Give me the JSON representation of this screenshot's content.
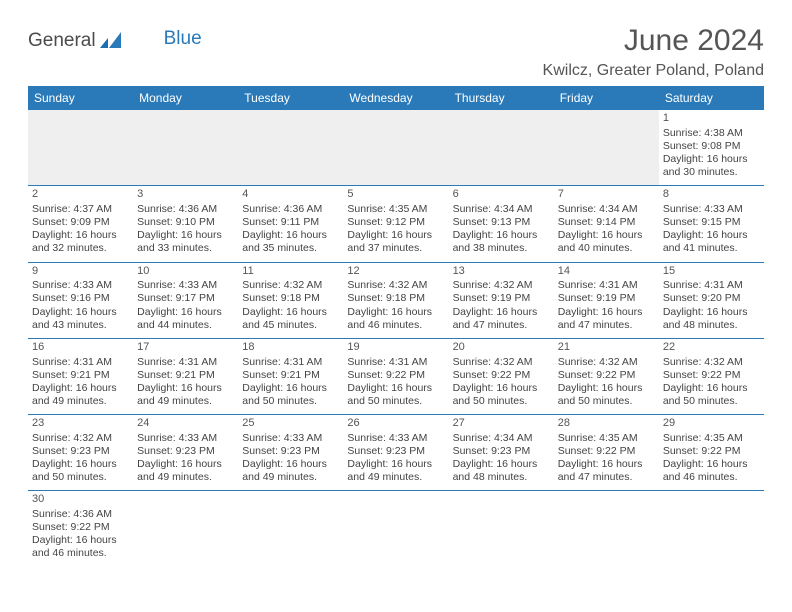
{
  "brand": {
    "word1": "General",
    "word2": "Blue",
    "color1": "#4b4b4b",
    "color2": "#2a7ab9"
  },
  "title": "June 2024",
  "location": "Kwilcz, Greater Poland, Poland",
  "header_bg": "#2a7ab9",
  "days": [
    "Sunday",
    "Monday",
    "Tuesday",
    "Wednesday",
    "Thursday",
    "Friday",
    "Saturday"
  ],
  "weeks": [
    [
      null,
      null,
      null,
      null,
      null,
      null,
      {
        "n": "1",
        "sr": "4:38 AM",
        "ss": "9:08 PM",
        "dl": "16 hours and 30 minutes."
      }
    ],
    [
      {
        "n": "2",
        "sr": "4:37 AM",
        "ss": "9:09 PM",
        "dl": "16 hours and 32 minutes."
      },
      {
        "n": "3",
        "sr": "4:36 AM",
        "ss": "9:10 PM",
        "dl": "16 hours and 33 minutes."
      },
      {
        "n": "4",
        "sr": "4:36 AM",
        "ss": "9:11 PM",
        "dl": "16 hours and 35 minutes."
      },
      {
        "n": "5",
        "sr": "4:35 AM",
        "ss": "9:12 PM",
        "dl": "16 hours and 37 minutes."
      },
      {
        "n": "6",
        "sr": "4:34 AM",
        "ss": "9:13 PM",
        "dl": "16 hours and 38 minutes."
      },
      {
        "n": "7",
        "sr": "4:34 AM",
        "ss": "9:14 PM",
        "dl": "16 hours and 40 minutes."
      },
      {
        "n": "8",
        "sr": "4:33 AM",
        "ss": "9:15 PM",
        "dl": "16 hours and 41 minutes."
      }
    ],
    [
      {
        "n": "9",
        "sr": "4:33 AM",
        "ss": "9:16 PM",
        "dl": "16 hours and 43 minutes."
      },
      {
        "n": "10",
        "sr": "4:33 AM",
        "ss": "9:17 PM",
        "dl": "16 hours and 44 minutes."
      },
      {
        "n": "11",
        "sr": "4:32 AM",
        "ss": "9:18 PM",
        "dl": "16 hours and 45 minutes."
      },
      {
        "n": "12",
        "sr": "4:32 AM",
        "ss": "9:18 PM",
        "dl": "16 hours and 46 minutes."
      },
      {
        "n": "13",
        "sr": "4:32 AM",
        "ss": "9:19 PM",
        "dl": "16 hours and 47 minutes."
      },
      {
        "n": "14",
        "sr": "4:31 AM",
        "ss": "9:19 PM",
        "dl": "16 hours and 47 minutes."
      },
      {
        "n": "15",
        "sr": "4:31 AM",
        "ss": "9:20 PM",
        "dl": "16 hours and 48 minutes."
      }
    ],
    [
      {
        "n": "16",
        "sr": "4:31 AM",
        "ss": "9:21 PM",
        "dl": "16 hours and 49 minutes."
      },
      {
        "n": "17",
        "sr": "4:31 AM",
        "ss": "9:21 PM",
        "dl": "16 hours and 49 minutes."
      },
      {
        "n": "18",
        "sr": "4:31 AM",
        "ss": "9:21 PM",
        "dl": "16 hours and 50 minutes."
      },
      {
        "n": "19",
        "sr": "4:31 AM",
        "ss": "9:22 PM",
        "dl": "16 hours and 50 minutes."
      },
      {
        "n": "20",
        "sr": "4:32 AM",
        "ss": "9:22 PM",
        "dl": "16 hours and 50 minutes."
      },
      {
        "n": "21",
        "sr": "4:32 AM",
        "ss": "9:22 PM",
        "dl": "16 hours and 50 minutes."
      },
      {
        "n": "22",
        "sr": "4:32 AM",
        "ss": "9:22 PM",
        "dl": "16 hours and 50 minutes."
      }
    ],
    [
      {
        "n": "23",
        "sr": "4:32 AM",
        "ss": "9:23 PM",
        "dl": "16 hours and 50 minutes."
      },
      {
        "n": "24",
        "sr": "4:33 AM",
        "ss": "9:23 PM",
        "dl": "16 hours and 49 minutes."
      },
      {
        "n": "25",
        "sr": "4:33 AM",
        "ss": "9:23 PM",
        "dl": "16 hours and 49 minutes."
      },
      {
        "n": "26",
        "sr": "4:33 AM",
        "ss": "9:23 PM",
        "dl": "16 hours and 49 minutes."
      },
      {
        "n": "27",
        "sr": "4:34 AM",
        "ss": "9:23 PM",
        "dl": "16 hours and 48 minutes."
      },
      {
        "n": "28",
        "sr": "4:35 AM",
        "ss": "9:22 PM",
        "dl": "16 hours and 47 minutes."
      },
      {
        "n": "29",
        "sr": "4:35 AM",
        "ss": "9:22 PM",
        "dl": "16 hours and 46 minutes."
      }
    ],
    [
      {
        "n": "30",
        "sr": "4:36 AM",
        "ss": "9:22 PM",
        "dl": "16 hours and 46 minutes."
      },
      null,
      null,
      null,
      null,
      null,
      null
    ]
  ],
  "labels": {
    "sunrise": "Sunrise: ",
    "sunset": "Sunset: ",
    "daylight": "Daylight: "
  }
}
